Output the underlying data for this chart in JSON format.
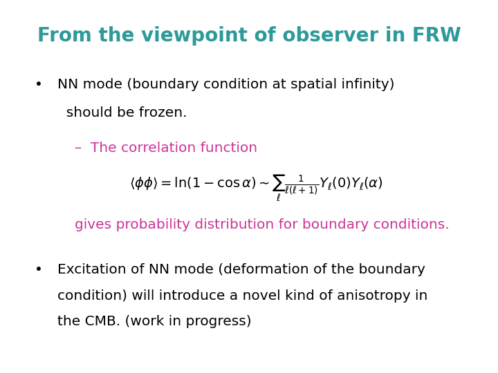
{
  "title": "From the viewpoint of observer in FRW",
  "title_color": "#2E9999",
  "title_fontsize": 20,
  "title_bold": true,
  "background_color": "#FFFFFF",
  "bullet1_text1": "NN mode (boundary condition at spatial infinity)",
  "bullet1_text2": "  should be frozen.",
  "bullet1_color": "#000000",
  "bullet1_fontsize": 14.5,
  "dash_text": "–  The correlation function",
  "dash_color": "#CC3399",
  "dash_fontsize": 14.5,
  "formula": "$\\langle\\phi\\phi\\rangle = \\ln(1 - \\cos\\alpha) \\sim \\sum_\\ell \\frac{1}{\\ell(\\ell+1)} Y_\\ell(0) Y_\\ell(\\alpha)$",
  "formula_color": "#000000",
  "formula_fontsize": 14,
  "gives_text": "gives probability distribution for boundary conditions.",
  "gives_color": "#CC3399",
  "gives_fontsize": 14.5,
  "bullet2_text1": "Excitation of NN mode (deformation of the boundary",
  "bullet2_text2": "condition) will introduce a novel kind of anisotropy in",
  "bullet2_text3": "the CMB. (work in progress)",
  "bullet2_color": "#000000",
  "bullet2_fontsize": 14.5
}
